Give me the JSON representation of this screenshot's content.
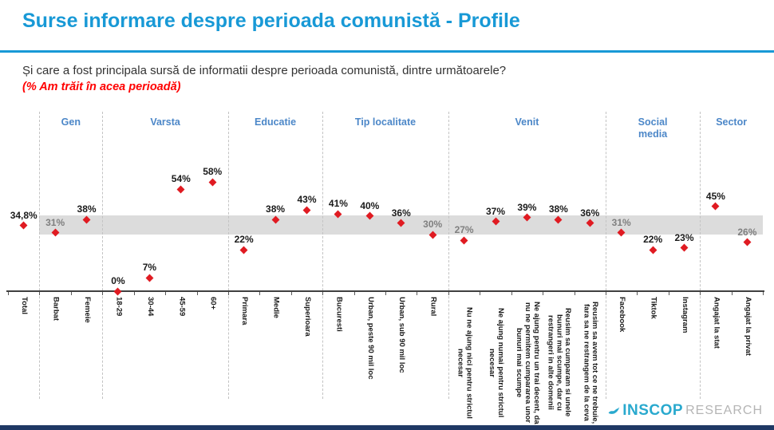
{
  "header": {
    "title": "Surse informare despre perioada comunistă - Profile",
    "question": "Și care a fost principala sursă de informatii despre perioada comunistă, dintre următoarele?",
    "note": "(% Am trăit în acea perioadă)"
  },
  "chart_data": {
    "type": "scatter",
    "title": "Surse informare despre perioada comunistă - Profile",
    "subtitle": "% Am trăit în acea perioadă",
    "marker": "diamond",
    "grid": false,
    "legend": false,
    "ylim": [
      0,
      70
    ],
    "categories": [
      "Total",
      "Barbat",
      "Femeie",
      "18-29",
      "30-44",
      "45-59",
      "60+",
      "Primara",
      "Medie",
      "Superioara",
      "Bucuresti",
      "Urban, peste 90 mil loc",
      "Urban, sub 90 mil loc",
      "Rural",
      "Nu ne ajung nici pentru strictul necesar",
      "Ne ajung numai pentru strictul necesar",
      "Ne ajung pentru un trai decent, da nu ne permitem cumpararea unor bunuri mai scumpe",
      "Reusim sa cumparam si unele bunuri mai scumpe, dar cu restrangeri in alte domenii",
      "Reusim sa avem tot ce ne trebuie, fara sa ne restrangem de la ceva",
      "Facebook",
      "Tiktok",
      "Instagram",
      "Angajat la stat",
      "Angajat la privat"
    ],
    "values": [
      34.8,
      31,
      38,
      0,
      7,
      54,
      58,
      22,
      38,
      43,
      41,
      40,
      36,
      30,
      27,
      37,
      39,
      38,
      36,
      31,
      22,
      23,
      45,
      26
    ],
    "point_labels": [
      "34,8%",
      "31%",
      "38%",
      "0%",
      "7%",
      "54%",
      "58%",
      "22%",
      "38%",
      "43%",
      "41%",
      "40%",
      "36%",
      "30%",
      "27%",
      "37%",
      "39%",
      "38%",
      "36%",
      "31%",
      "22%",
      "23%",
      "45%",
      "26%"
    ],
    "muted_label_indices": [
      1,
      13,
      14,
      19,
      23
    ],
    "groups": [
      {
        "label": "",
        "cols": 1
      },
      {
        "label": "Gen",
        "cols": 2
      },
      {
        "label": "Varsta",
        "cols": 4
      },
      {
        "label": "Educatie",
        "cols": 3
      },
      {
        "label": "Tip localitate",
        "cols": 4
      },
      {
        "label": "Venit",
        "cols": 5
      },
      {
        "label": "Social\nmedia",
        "cols": 3
      },
      {
        "label": "Sector",
        "cols": 2
      }
    ],
    "reference_band": {
      "low": 30,
      "high": 40.3
    }
  },
  "colors": {
    "title_blue": "#1899D6",
    "group_header_blue": "#4C87C8",
    "marker_red": "#E01B22",
    "band_gray": "#DCDCDC",
    "muted_label_gray": "#7F7F7F",
    "label_black": "#1A1A1A",
    "note_red": "#FF0000",
    "logo_cyan": "#29A9CE",
    "logo_gray": "#B5B5B5",
    "footer_navy": "#1F3864"
  },
  "footer": {
    "brand": "INSCOP",
    "brand_suffix": "RESEARCH"
  }
}
